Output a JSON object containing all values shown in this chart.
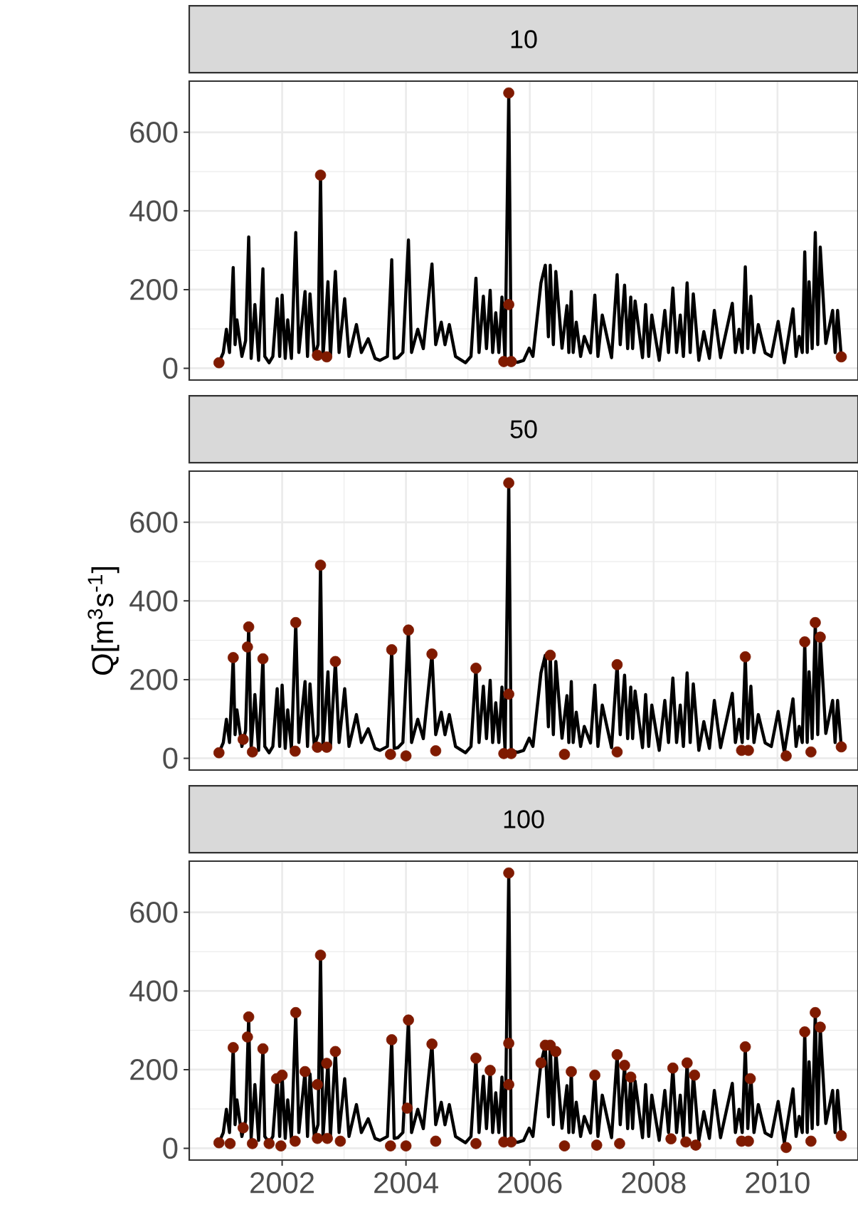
{
  "chart_data": [
    {
      "type": "line",
      "title": "10",
      "xlim": [
        2000.5,
        2011.3
      ],
      "ylim": [
        -30,
        730
      ],
      "xticks": [
        2002,
        2004,
        2006,
        2008,
        2010
      ],
      "yticks": [
        0,
        200,
        400,
        600
      ],
      "grid": true,
      "tick_labels": "y",
      "series": [
        {
          "type": "line",
          "color": "#000000",
          "x": [
            2000.98,
            2001.05,
            2001.1,
            2001.15,
            2001.21,
            2001.24,
            2001.27,
            2001.35,
            2001.41,
            2001.46,
            2001.5,
            2001.56,
            2001.62,
            2001.69,
            2001.72,
            2001.79,
            2001.85,
            2001.92,
            2001.96,
            2002.0,
            2002.05,
            2002.09,
            2002.15,
            2002.22,
            2002.27,
            2002.37,
            2002.41,
            2002.45,
            2002.52,
            2002.58,
            2002.62,
            2002.66,
            2002.7,
            2002.74,
            2002.78,
            2002.86,
            2002.92,
            2003.01,
            2003.08,
            2003.2,
            2003.28,
            2003.39,
            2003.5,
            2003.58,
            2003.7,
            2003.77,
            2003.81,
            2003.87,
            2003.95,
            2004.04,
            2004.09,
            2004.19,
            2004.28,
            2004.42,
            2004.48,
            2004.57,
            2004.63,
            2004.7,
            2004.8,
            2004.96,
            2005.05,
            2005.13,
            2005.18,
            2005.25,
            2005.3,
            2005.36,
            2005.4,
            2005.45,
            2005.5,
            2005.55,
            2005.6,
            2005.66,
            2005.7,
            2005.8,
            2005.9,
            2005.99,
            2006.05,
            2006.18,
            2006.25,
            2006.3,
            2006.33,
            2006.38,
            2006.42,
            2006.52,
            2006.6,
            2006.63,
            2006.67,
            2006.7,
            2006.75,
            2006.82,
            2006.88,
            2006.98,
            2007.05,
            2007.1,
            2007.17,
            2007.32,
            2007.41,
            2007.46,
            2007.53,
            2007.58,
            2007.63,
            2007.66,
            2007.7,
            2007.82,
            2007.87,
            2007.92,
            2007.97,
            2008.09,
            2008.18,
            2008.24,
            2008.31,
            2008.37,
            2008.43,
            2008.48,
            2008.54,
            2008.59,
            2008.64,
            2008.73,
            2008.81,
            2008.9,
            2008.98,
            2009.08,
            2009.27,
            2009.32,
            2009.38,
            2009.43,
            2009.48,
            2009.52,
            2009.57,
            2009.62,
            2009.69,
            2009.8,
            2009.9,
            2010.01,
            2010.11,
            2010.25,
            2010.3,
            2010.35,
            2010.4,
            2010.44,
            2010.48,
            2010.51,
            2010.56,
            2010.61,
            2010.65,
            2010.69,
            2010.78,
            2010.89,
            2010.93,
            2010.97,
            2011.03
          ],
          "values": [
            14,
            40,
            99,
            40,
            256,
            60,
            123,
            30,
            70,
            334,
            25,
            162,
            20,
            253,
            30,
            14,
            30,
            177,
            30,
            186,
            25,
            123,
            25,
            345,
            40,
            195,
            30,
            189,
            30,
            60,
            491,
            30,
            120,
            220,
            30,
            246,
            40,
            177,
            30,
            111,
            40,
            75,
            25,
            20,
            30,
            276,
            25,
            27,
            40,
            326,
            40,
            99,
            50,
            265,
            60,
            117,
            60,
            111,
            30,
            14,
            30,
            229,
            40,
            183,
            50,
            198,
            40,
            141,
            40,
            181,
            20,
            700,
            20,
            15,
            20,
            51,
            30,
            217,
            262,
            80,
            262,
            60,
            246,
            51,
            159,
            40,
            195,
            40,
            117,
            30,
            81,
            39,
            186,
            30,
            135,
            27,
            238,
            60,
            211,
            50,
            181,
            50,
            171,
            27,
            162,
            30,
            135,
            20,
            147,
            40,
            204,
            40,
            135,
            30,
            217,
            40,
            189,
            20,
            93,
            25,
            147,
            27,
            165,
            40,
            99,
            40,
            258,
            50,
            183,
            40,
            111,
            39,
            30,
            119,
            14,
            151,
            30,
            81,
            40,
            296,
            40,
            220,
            50,
            345,
            60,
            308,
            63,
            147,
            40,
            147,
            29
          ]
        },
        {
          "type": "scatter",
          "color": "#7f1a00",
          "marker": "circle",
          "x": [
            2000.98,
            2002.57,
            2002.62,
            2002.72,
            2005.58,
            2005.66,
            2005.66,
            2005.7,
            2011.03
          ],
          "values": [
            14,
            33,
            491,
            29,
            17,
            162,
            700,
            17,
            29
          ]
        }
      ]
    },
    {
      "type": "line",
      "title": "50",
      "ylabel": "Q[m$^{3}$s$^{-1}$]",
      "xlim": [
        2000.5,
        2011.3
      ],
      "ylim": [
        -30,
        730
      ],
      "xticks": [
        2002,
        2004,
        2006,
        2008,
        2010
      ],
      "yticks": [
        0,
        200,
        400,
        600
      ],
      "grid": true,
      "tick_labels": "y",
      "series": [
        {
          "type": "line",
          "color": "#000000",
          "x": [
            2000.98,
            2001.05,
            2001.1,
            2001.15,
            2001.21,
            2001.24,
            2001.27,
            2001.35,
            2001.41,
            2001.46,
            2001.5,
            2001.56,
            2001.62,
            2001.69,
            2001.72,
            2001.79,
            2001.85,
            2001.92,
            2001.96,
            2002.0,
            2002.05,
            2002.09,
            2002.15,
            2002.22,
            2002.27,
            2002.37,
            2002.41,
            2002.45,
            2002.52,
            2002.58,
            2002.62,
            2002.66,
            2002.7,
            2002.74,
            2002.78,
            2002.86,
            2002.92,
            2003.01,
            2003.08,
            2003.2,
            2003.28,
            2003.39,
            2003.5,
            2003.58,
            2003.7,
            2003.77,
            2003.81,
            2003.87,
            2003.95,
            2004.04,
            2004.09,
            2004.19,
            2004.28,
            2004.42,
            2004.48,
            2004.57,
            2004.63,
            2004.7,
            2004.8,
            2004.96,
            2005.05,
            2005.13,
            2005.18,
            2005.25,
            2005.3,
            2005.36,
            2005.4,
            2005.45,
            2005.5,
            2005.55,
            2005.6,
            2005.66,
            2005.7,
            2005.8,
            2005.9,
            2005.99,
            2006.05,
            2006.18,
            2006.25,
            2006.3,
            2006.33,
            2006.38,
            2006.42,
            2006.52,
            2006.6,
            2006.63,
            2006.67,
            2006.7,
            2006.75,
            2006.82,
            2006.88,
            2006.98,
            2007.05,
            2007.1,
            2007.17,
            2007.32,
            2007.41,
            2007.46,
            2007.53,
            2007.58,
            2007.63,
            2007.66,
            2007.7,
            2007.82,
            2007.87,
            2007.92,
            2007.97,
            2008.09,
            2008.18,
            2008.24,
            2008.31,
            2008.37,
            2008.43,
            2008.48,
            2008.54,
            2008.59,
            2008.64,
            2008.73,
            2008.81,
            2008.9,
            2008.98,
            2009.08,
            2009.27,
            2009.32,
            2009.38,
            2009.43,
            2009.48,
            2009.52,
            2009.57,
            2009.62,
            2009.69,
            2009.8,
            2009.9,
            2010.01,
            2010.11,
            2010.25,
            2010.3,
            2010.35,
            2010.4,
            2010.44,
            2010.48,
            2010.51,
            2010.56,
            2010.61,
            2010.65,
            2010.69,
            2010.78,
            2010.89,
            2010.93,
            2010.97,
            2011.03
          ],
          "values": [
            14,
            40,
            99,
            40,
            256,
            60,
            123,
            30,
            70,
            334,
            25,
            162,
            20,
            253,
            30,
            14,
            30,
            177,
            30,
            186,
            25,
            123,
            25,
            345,
            40,
            195,
            30,
            189,
            30,
            60,
            491,
            30,
            120,
            220,
            30,
            246,
            40,
            177,
            30,
            111,
            40,
            75,
            25,
            20,
            30,
            276,
            25,
            27,
            40,
            326,
            40,
            99,
            50,
            265,
            60,
            117,
            60,
            111,
            30,
            14,
            30,
            229,
            40,
            183,
            50,
            198,
            40,
            141,
            40,
            181,
            20,
            700,
            20,
            15,
            20,
            51,
            30,
            217,
            262,
            80,
            262,
            60,
            246,
            51,
            159,
            40,
            195,
            40,
            117,
            30,
            81,
            39,
            186,
            30,
            135,
            27,
            238,
            60,
            211,
            50,
            181,
            50,
            171,
            27,
            162,
            30,
            135,
            20,
            147,
            40,
            204,
            40,
            135,
            30,
            217,
            40,
            189,
            20,
            93,
            25,
            147,
            27,
            165,
            40,
            99,
            40,
            258,
            50,
            183,
            40,
            111,
            39,
            30,
            119,
            14,
            151,
            30,
            81,
            40,
            296,
            40,
            220,
            50,
            345,
            60,
            308,
            63,
            147,
            40,
            147,
            29
          ]
        },
        {
          "type": "scatter",
          "color": "#7f1a00",
          "marker": "circle",
          "x": [
            2000.98,
            2001.21,
            2001.37,
            2001.44,
            2001.46,
            2001.52,
            2001.69,
            2002.21,
            2002.22,
            2002.57,
            2002.62,
            2002.72,
            2002.86,
            2003.75,
            2003.77,
            2004.0,
            2004.04,
            2004.42,
            2004.48,
            2005.13,
            2005.58,
            2005.66,
            2005.66,
            2005.7,
            2006.33,
            2006.56,
            2007.41,
            2007.41,
            2009.42,
            2009.48,
            2009.53,
            2010.14,
            2010.44,
            2010.54,
            2010.61,
            2010.69,
            2011.03
          ],
          "values": [
            14,
            256,
            48,
            283,
            334,
            16,
            253,
            18,
            345,
            28,
            491,
            28,
            246,
            10,
            276,
            6,
            326,
            265,
            19,
            229,
            12,
            163,
            700,
            12,
            262,
            10,
            16,
            238,
            20,
            258,
            20,
            6,
            296,
            16,
            345,
            308,
            29
          ]
        }
      ]
    },
    {
      "type": "line",
      "title": "100",
      "xlim": [
        2000.5,
        2011.3
      ],
      "ylim": [
        -30,
        730
      ],
      "xticks": [
        2002,
        2004,
        2006,
        2008,
        2010
      ],
      "yticks": [
        0,
        200,
        400,
        600
      ],
      "grid": true,
      "series": [
        {
          "type": "line",
          "color": "#000000",
          "x": [
            2000.98,
            2001.05,
            2001.1,
            2001.15,
            2001.21,
            2001.24,
            2001.27,
            2001.35,
            2001.41,
            2001.46,
            2001.5,
            2001.56,
            2001.62,
            2001.69,
            2001.72,
            2001.79,
            2001.85,
            2001.92,
            2001.96,
            2002.0,
            2002.05,
            2002.09,
            2002.15,
            2002.22,
            2002.27,
            2002.37,
            2002.41,
            2002.45,
            2002.52,
            2002.58,
            2002.62,
            2002.66,
            2002.7,
            2002.74,
            2002.78,
            2002.86,
            2002.92,
            2003.01,
            2003.08,
            2003.2,
            2003.28,
            2003.39,
            2003.5,
            2003.58,
            2003.7,
            2003.77,
            2003.81,
            2003.87,
            2003.95,
            2004.04,
            2004.09,
            2004.19,
            2004.28,
            2004.42,
            2004.48,
            2004.57,
            2004.63,
            2004.7,
            2004.8,
            2004.96,
            2005.05,
            2005.13,
            2005.18,
            2005.25,
            2005.3,
            2005.36,
            2005.4,
            2005.45,
            2005.5,
            2005.55,
            2005.6,
            2005.66,
            2005.7,
            2005.8,
            2005.9,
            2005.99,
            2006.05,
            2006.18,
            2006.25,
            2006.3,
            2006.33,
            2006.38,
            2006.42,
            2006.52,
            2006.6,
            2006.63,
            2006.67,
            2006.7,
            2006.75,
            2006.82,
            2006.88,
            2006.98,
            2007.05,
            2007.1,
            2007.17,
            2007.32,
            2007.41,
            2007.46,
            2007.53,
            2007.58,
            2007.63,
            2007.66,
            2007.7,
            2007.82,
            2007.87,
            2007.92,
            2007.97,
            2008.09,
            2008.18,
            2008.24,
            2008.31,
            2008.37,
            2008.43,
            2008.48,
            2008.54,
            2008.59,
            2008.64,
            2008.73,
            2008.81,
            2008.9,
            2008.98,
            2009.08,
            2009.27,
            2009.32,
            2009.38,
            2009.43,
            2009.48,
            2009.52,
            2009.57,
            2009.62,
            2009.69,
            2009.8,
            2009.9,
            2010.01,
            2010.11,
            2010.25,
            2010.3,
            2010.35,
            2010.4,
            2010.44,
            2010.48,
            2010.51,
            2010.56,
            2010.61,
            2010.65,
            2010.69,
            2010.78,
            2010.89,
            2010.93,
            2010.97,
            2011.03
          ],
          "values": [
            14,
            40,
            99,
            40,
            256,
            60,
            123,
            30,
            70,
            334,
            25,
            162,
            20,
            253,
            30,
            14,
            30,
            177,
            30,
            186,
            25,
            123,
            25,
            345,
            40,
            195,
            30,
            189,
            30,
            60,
            491,
            30,
            120,
            220,
            30,
            246,
            40,
            177,
            30,
            111,
            40,
            75,
            25,
            20,
            30,
            276,
            25,
            27,
            40,
            326,
            40,
            99,
            50,
            265,
            60,
            117,
            60,
            111,
            30,
            14,
            30,
            229,
            40,
            183,
            50,
            198,
            40,
            141,
            40,
            181,
            20,
            700,
            20,
            15,
            20,
            51,
            30,
            217,
            262,
            80,
            262,
            60,
            246,
            51,
            159,
            40,
            195,
            40,
            117,
            30,
            81,
            39,
            186,
            30,
            135,
            27,
            238,
            60,
            211,
            50,
            181,
            50,
            171,
            27,
            162,
            30,
            135,
            20,
            147,
            40,
            204,
            40,
            135,
            30,
            217,
            40,
            189,
            20,
            93,
            25,
            147,
            27,
            165,
            40,
            99,
            40,
            258,
            50,
            183,
            40,
            111,
            39,
            30,
            119,
            14,
            151,
            30,
            81,
            40,
            296,
            40,
            220,
            50,
            345,
            60,
            308,
            63,
            147,
            40,
            147,
            29
          ]
        },
        {
          "type": "scatter",
          "color": "#7f1a00",
          "marker": "circle",
          "x": [
            2000.98,
            2001.16,
            2001.21,
            2001.37,
            2001.44,
            2001.46,
            2001.52,
            2001.69,
            2001.79,
            2001.91,
            2001.98,
            2002.0,
            2002.21,
            2002.22,
            2002.37,
            2002.57,
            2002.57,
            2002.62,
            2002.72,
            2002.73,
            2002.86,
            2002.94,
            2003.75,
            2003.77,
            2004.0,
            2004.02,
            2004.04,
            2004.42,
            2004.48,
            2005.13,
            2005.13,
            2005.36,
            2005.58,
            2005.66,
            2005.66,
            2005.66,
            2005.7,
            2006.18,
            2006.25,
            2006.33,
            2006.42,
            2006.56,
            2006.67,
            2007.05,
            2007.08,
            2007.41,
            2007.45,
            2007.53,
            2007.63,
            2008.28,
            2008.31,
            2008.52,
            2008.54,
            2008.66,
            2008.68,
            2009.42,
            2009.48,
            2009.53,
            2009.56,
            2010.14,
            2010.44,
            2010.54,
            2010.61,
            2010.69,
            2011.03
          ],
          "values": [
            14,
            12,
            256,
            52,
            283,
            334,
            12,
            253,
            12,
            177,
            6,
            186,
            18,
            345,
            195,
            25,
            162,
            491,
            216,
            25,
            246,
            18,
            6,
            276,
            6,
            102,
            326,
            265,
            18,
            12,
            229,
            198,
            16,
            162,
            267,
            700,
            16,
            217,
            262,
            262,
            246,
            6,
            195,
            186,
            8,
            238,
            12,
            211,
            181,
            24,
            204,
            16,
            217,
            186,
            8,
            18,
            258,
            18,
            177,
            2,
            296,
            18,
            345,
            308,
            32
          ]
        }
      ]
    }
  ]
}
